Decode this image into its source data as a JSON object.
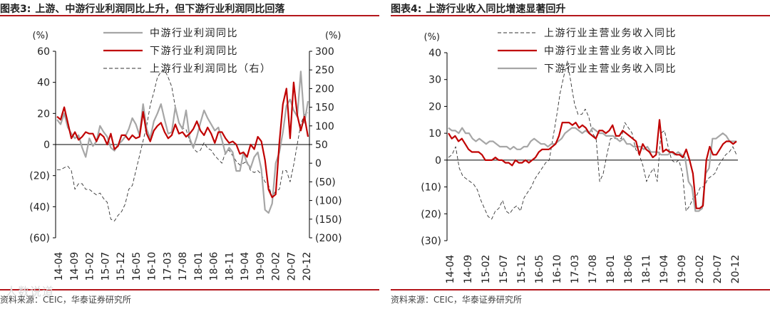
{
  "left": {
    "fig_number": "图表3:",
    "title": "上游、中游行业利润同比上升，但下游行业利润同比回落",
    "source": "资料来源：CEIC，华泰证券研究所"
  },
  "right": {
    "fig_number": "图表4:",
    "title": "上游行业收入同比增速显著回升",
    "source": "资料来源：CEIC，华泰证券研究所"
  },
  "watermark": "人数说道",
  "colors": {
    "red": "#c00000",
    "grey": "#a6a6a6",
    "dash": "#333333",
    "rule": "#b4161b"
  },
  "chart_data": [
    {
      "type": "line",
      "x_ticks": [
        "14-04",
        "14-09",
        "15-02",
        "15-07",
        "15-12",
        "16-05",
        "16-10",
        "17-03",
        "17-08",
        "18-01",
        "18-06",
        "18-11",
        "19-04",
        "19-09",
        "20-02",
        "20-07",
        "20-12"
      ],
      "y_left": {
        "unit": "(%)",
        "ylim": [
          -60,
          60
        ],
        "ticks": [
          "60",
          "40",
          "20",
          "0",
          "(20)",
          "(40)",
          "(60)"
        ]
      },
      "y_right": {
        "unit": "(%)",
        "ylim": [
          -200,
          300
        ],
        "ticks": [
          "300",
          "250",
          "200",
          "150",
          "100",
          "50",
          "0",
          "(50)",
          "(100)",
          "(150)",
          "(200)"
        ]
      },
      "legend_placement": "top-center",
      "series": [
        {
          "name": "中游行业利润同比",
          "axis": "left",
          "style": "grey",
          "values": [
            16,
            13,
            20,
            11,
            7,
            4,
            6,
            -2,
            -8,
            4,
            -1,
            2,
            12,
            8,
            5,
            -2,
            -4,
            0,
            2,
            5,
            10,
            17,
            13,
            6,
            26,
            10,
            4,
            15,
            20,
            26,
            16,
            7,
            8,
            24,
            14,
            10,
            22,
            4,
            -2,
            5,
            14,
            22,
            17,
            13,
            9,
            11,
            3,
            -6,
            -2,
            -5,
            -17,
            -17,
            -5,
            -12,
            -15,
            -8,
            -5,
            -16,
            -42,
            -44,
            -38,
            -12,
            -5,
            8,
            25,
            29,
            22,
            18,
            47,
            14,
            28
          ]
        },
        {
          "name": "下游行业利润同比",
          "axis": "left",
          "style": "red",
          "values": [
            18,
            16,
            24,
            14,
            4,
            8,
            3,
            5,
            8,
            7,
            7,
            2,
            7,
            5,
            0,
            7,
            -3,
            -1,
            6,
            6,
            3,
            6,
            4,
            5,
            21,
            7,
            2,
            9,
            12,
            14,
            8,
            4,
            6,
            13,
            7,
            8,
            5,
            7,
            10,
            15,
            9,
            6,
            11,
            7,
            1,
            8,
            8,
            4,
            1,
            2,
            0,
            -6,
            -5,
            -8,
            0,
            -3,
            5,
            2,
            -10,
            -29,
            -34,
            -32,
            1,
            26,
            36,
            4,
            40,
            19,
            9,
            18,
            5
          ]
        },
        {
          "name": "上游行业利润同比（右）",
          "axis": "right",
          "style": "dash",
          "values": [
            -18,
            -18,
            -12,
            -8,
            -20,
            -70,
            -55,
            -55,
            -70,
            -70,
            -78,
            -85,
            -80,
            -95,
            -105,
            -150,
            -155,
            -140,
            -130,
            -110,
            -70,
            -60,
            -20,
            20,
            60,
            100,
            155,
            190,
            230,
            245,
            250,
            230,
            205,
            150,
            110,
            95,
            90,
            60,
            40,
            30,
            35,
            55,
            40,
            35,
            20,
            10,
            0,
            30,
            35,
            20,
            5,
            -5,
            0,
            5,
            -20,
            -25,
            -20,
            -30,
            -50,
            -60,
            -90,
            -75,
            -70,
            -20,
            -20,
            -50,
            -5,
            50,
            105,
            130,
            135
          ]
        }
      ]
    },
    {
      "type": "line",
      "x_ticks": [
        "14-04",
        "14-09",
        "15-02",
        "15-07",
        "15-12",
        "16-05",
        "16-10",
        "17-03",
        "17-08",
        "18-01",
        "18-06",
        "18-11",
        "19-04",
        "19-09",
        "20-02",
        "20-07",
        "20-12"
      ],
      "y_left": {
        "unit": "(%)",
        "ylim": [
          -30,
          40
        ],
        "ticks": [
          "40",
          "30",
          "20",
          "10",
          "0",
          "(10)",
          "(20)",
          "(30)"
        ]
      },
      "legend_placement": "top-center",
      "series": [
        {
          "name": "上游行业主营业务收入同比",
          "axis": "left",
          "style": "dash",
          "values": [
            1,
            2,
            5,
            -3,
            -6,
            -7,
            -8,
            -9,
            -11,
            -15,
            -18,
            -21,
            -22,
            -19,
            -18,
            -15,
            -19,
            -20,
            -18,
            -17,
            -19,
            -14,
            -12,
            -10,
            -7,
            -5,
            -3,
            -1,
            0,
            8,
            16,
            25,
            31,
            37,
            29,
            21,
            17,
            17,
            19,
            16,
            10,
            8,
            -8,
            -5,
            2,
            8,
            8,
            8,
            8,
            14,
            12,
            10,
            4,
            2,
            -2,
            -8,
            -5,
            -3,
            -8,
            10,
            11,
            5,
            0,
            -1,
            0,
            -5,
            -19,
            -17,
            -14,
            -13,
            -10,
            -10,
            -7,
            -6,
            -5,
            -2,
            0,
            2,
            3,
            5,
            2
          ]
        },
        {
          "name": "中游行业主营业务收入同比",
          "axis": "left",
          "style": "red",
          "values": [
            10,
            8,
            9,
            7,
            8,
            6,
            4,
            3,
            3,
            3,
            2,
            0,
            0,
            0,
            1,
            0,
            0,
            -1,
            -1,
            -2,
            0,
            -1,
            -1,
            0,
            -1,
            0,
            1,
            3,
            4,
            4,
            4,
            5,
            6,
            9,
            14,
            14,
            14,
            13,
            14,
            12,
            13,
            12,
            10,
            9,
            8,
            11,
            11,
            10,
            11,
            13,
            9,
            9,
            11,
            10,
            9,
            8,
            7,
            2,
            6,
            4,
            3,
            1,
            2,
            15,
            3,
            4,
            3,
            3,
            2,
            2,
            1,
            4,
            0,
            -5,
            -18,
            -18,
            -17,
            0,
            5,
            2,
            2,
            4,
            6,
            7,
            7,
            6,
            7
          ]
        },
        {
          "name": "下游行业主营业务收入同比",
          "axis": "left",
          "style": "grey",
          "values": [
            12,
            11,
            11,
            10,
            12,
            10,
            10,
            8,
            7,
            8,
            7,
            6,
            7,
            7,
            6,
            5,
            5,
            5,
            4,
            5,
            4,
            4,
            5,
            5,
            7,
            8,
            7,
            6,
            6,
            5,
            6,
            6,
            7,
            8,
            10,
            11,
            12,
            12,
            11,
            10,
            11,
            10,
            12,
            11,
            10,
            10,
            9,
            9,
            9,
            8,
            7,
            8,
            6,
            6,
            5,
            5,
            5,
            4,
            5,
            3,
            3,
            3,
            2,
            2,
            2,
            3,
            2,
            3,
            2,
            1,
            -8,
            -10,
            -19,
            -19,
            -18,
            -5,
            -3,
            8,
            8,
            9,
            10,
            9,
            7,
            7,
            7
          ]
        }
      ]
    }
  ]
}
